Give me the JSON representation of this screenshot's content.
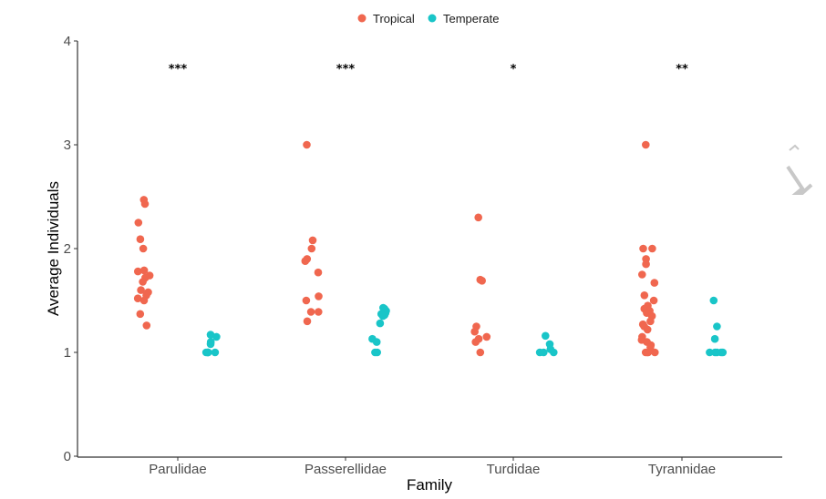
{
  "chart_data": {
    "type": "scatter",
    "title": "",
    "xlabel": "Family",
    "ylabel": "Average Individuals",
    "ylim": [
      0,
      4
    ],
    "yticks": [
      0,
      1,
      2,
      3,
      4
    ],
    "ytick_labels": [
      "0",
      "1",
      "2",
      "3",
      "4"
    ],
    "categories": [
      "Parulidae",
      "Passerellidae",
      "Turdidae",
      "Tyrannidae"
    ],
    "grid": false,
    "legend": {
      "placement": "top",
      "entries": [
        "Tropical",
        "Temperate"
      ]
    },
    "significance": [
      "***",
      "***",
      "*",
      "**"
    ],
    "series": [
      {
        "name": "Tropical",
        "color": "#f0674f",
        "points": {
          "Parulidae": [
            2.47,
            2.43,
            2.25,
            2.09,
            2.0,
            1.79,
            1.78,
            1.74,
            1.72,
            1.68,
            1.6,
            1.58,
            1.55,
            1.52,
            1.5,
            1.37,
            1.26
          ],
          "Passerellidae": [
            3.0,
            2.08,
            2.0,
            1.9,
            1.88,
            1.77,
            1.54,
            1.5,
            1.39,
            1.39,
            1.3
          ],
          "Turdidae": [
            2.3,
            1.7,
            1.69,
            1.25,
            1.2,
            1.15,
            1.13,
            1.1,
            1.0
          ],
          "Tyrannidae": [
            3.0,
            2.0,
            2.0,
            1.9,
            1.85,
            1.75,
            1.67,
            1.55,
            1.5,
            1.45,
            1.42,
            1.4,
            1.38,
            1.35,
            1.3,
            1.27,
            1.25,
            1.22,
            1.15,
            1.12,
            1.1,
            1.07,
            1.05,
            1.0,
            1.0,
            1.0,
            1.0
          ]
        }
      },
      {
        "name": "Temperate",
        "color": "#19c5c8",
        "points": {
          "Parulidae": [
            1.17,
            1.15,
            1.1,
            1.08,
            1.0,
            1.0,
            1.0,
            1.0,
            1.0
          ],
          "Passerellidae": [
            1.43,
            1.42,
            1.4,
            1.38,
            1.36,
            1.35,
            1.37,
            1.28,
            1.13,
            1.1,
            1.0,
            1.0
          ],
          "Turdidae": [
            1.16,
            1.08,
            1.03,
            1.0,
            1.0,
            1.0
          ],
          "Tyrannidae": [
            1.5,
            1.25,
            1.13,
            1.0,
            1.0,
            1.0,
            1.0,
            1.0
          ]
        }
      }
    ]
  }
}
